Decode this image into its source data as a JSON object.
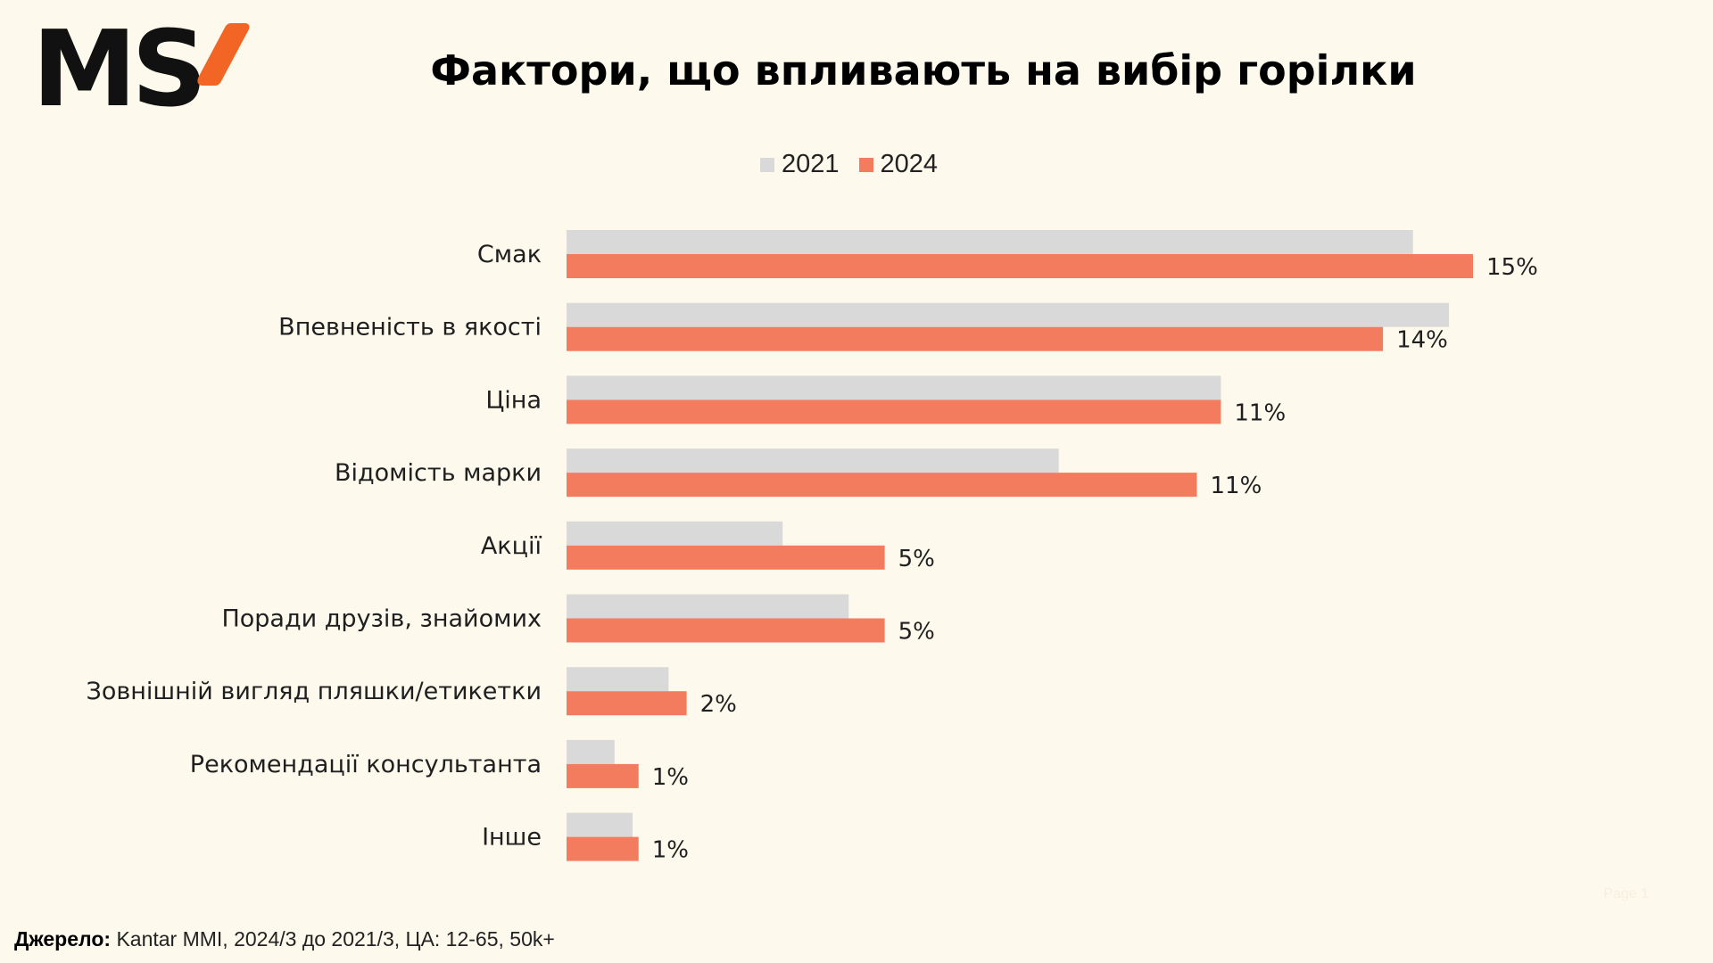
{
  "logo": {
    "text": "MS",
    "accent_color": "#f26524"
  },
  "source": {
    "label": "Джерело:",
    "text": "Kantar MMI, 2024/3 до 2021/3, ЦА: 12-65, 50k+"
  },
  "page_number": "Page 1",
  "chart_data": {
    "type": "bar",
    "orientation": "horizontal",
    "title": "Фактори, що впливають на вибір горілки",
    "legend_position": "top",
    "categories": [
      "Смак",
      "Впевненість в якості",
      "Ціна",
      "Відомість марки",
      "Акції",
      "Поради друзів, знайомих",
      "Зовнішній вигляд пляшки/етикетки",
      "Рекомендації консультанта",
      "Інше"
    ],
    "series": [
      {
        "name": "2021",
        "color": "#d9d9d9",
        "values": [
          14.1,
          14.7,
          10.9,
          8.2,
          3.6,
          4.7,
          1.7,
          0.8,
          1.1
        ],
        "labels": [
          "",
          "",
          "",
          "",
          "",
          "",
          "",
          "",
          ""
        ]
      },
      {
        "name": "2024",
        "color": "#f47c5e",
        "values": [
          15.1,
          13.6,
          10.9,
          10.5,
          5.3,
          5.3,
          2.0,
          1.2,
          1.2
        ],
        "labels": [
          "15%",
          "14%",
          "11%",
          "11%",
          "5%",
          "5%",
          "2%",
          "1%",
          "1%"
        ]
      }
    ],
    "xlim": [
      0,
      16
    ],
    "grid": false
  }
}
